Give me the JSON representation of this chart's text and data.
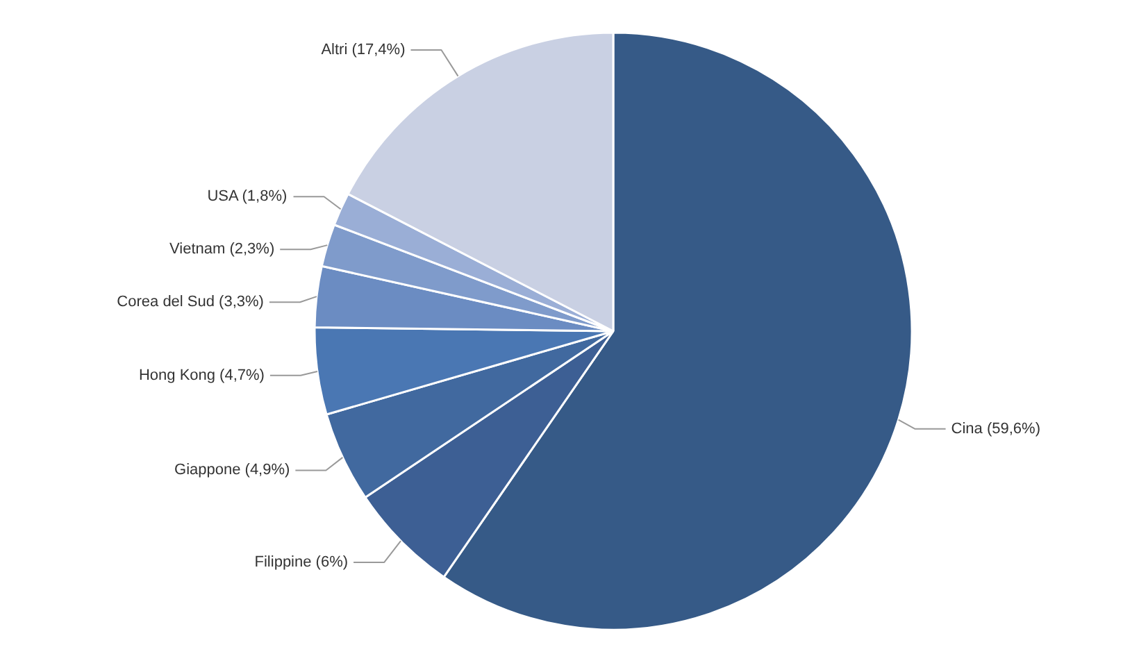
{
  "chart_data": {
    "type": "pie",
    "categories": [
      "Cina (59,6%)",
      "Filippine (6%)",
      "Giappone (4,9%)",
      "Hong Kong (4,7%)",
      "Corea del Sud (3,3%)",
      "Vietnam (2,3%)",
      "USA (1,8%)",
      "Altri (17,4%)"
    ],
    "values": [
      59.6,
      6,
      4.9,
      4.7,
      3.3,
      2.3,
      1.8,
      17.4
    ],
    "colors": [
      "#365a87",
      "#3d5f94",
      "#41699f",
      "#4a77b3",
      "#6b8cc2",
      "#7f9bcb",
      "#9aaed6",
      "#c9d0e3"
    ]
  }
}
